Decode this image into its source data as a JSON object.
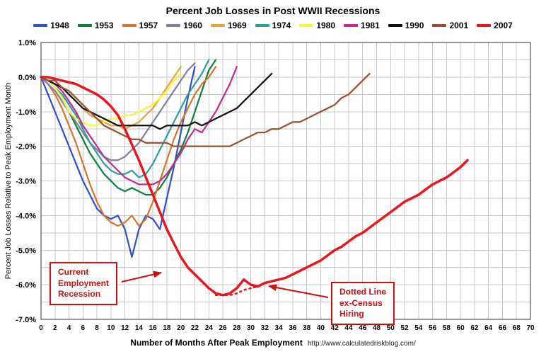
{
  "title": "Percent Job Losses in Post WWII Recessions",
  "axes": {
    "y_label": "Percent Job Losses Relative to Peak Employment Month",
    "x_label": "Number of Months After Peak Employment",
    "source_url": "http://www.calculatedriskblog.com/"
  },
  "annotations": [
    {
      "lines": [
        "Current",
        "Employment",
        "Recession"
      ]
    },
    {
      "lines": [
        "Dotted Line",
        "ex-Census",
        "Hiring"
      ]
    }
  ],
  "colors": {
    "annotation_red": "#cc1111",
    "grid": "#c6c6c6",
    "plot_border": "#555555"
  },
  "chart_data": {
    "type": "line",
    "title": "Percent Job Losses in Post WWII Recessions",
    "xlabel": "Number of Months After Peak Employment",
    "ylabel": "Percent Job Losses Relative to Peak Employment Month",
    "xlim": [
      0,
      70
    ],
    "ylim": [
      -7.0,
      1.0
    ],
    "x_tick_step": 2,
    "y_tick_step": 1.0,
    "y_grid_step": 0.5,
    "grid": true,
    "legend_position": "top",
    "x_unit": "months after peak employment",
    "y_unit": "percent",
    "series": [
      {
        "name": "1948",
        "color": "#3450c8",
        "values": [
          0,
          -0.5,
          -1.0,
          -1.5,
          -2.0,
          -2.5,
          -3.0,
          -3.4,
          -3.8,
          -4.0,
          -4.1,
          -4.0,
          -4.4,
          -5.2,
          -4.4,
          -4.0,
          -4.1,
          -4.4,
          -3.5,
          -2.6,
          -1.6,
          -0.6,
          0.3
        ]
      },
      {
        "name": "1953",
        "color": "#0e8040",
        "values": [
          0,
          -0.1,
          -0.3,
          -0.6,
          -1.0,
          -1.4,
          -1.8,
          -2.2,
          -2.5,
          -2.8,
          -3.0,
          -3.2,
          -3.3,
          -3.2,
          -3.3,
          -3.4,
          -3.4,
          -3.2,
          -2.9,
          -2.5,
          -2.1,
          -1.6,
          -1.0,
          -0.4,
          0.2,
          0.5
        ]
      },
      {
        "name": "1957",
        "color": "#d3772f",
        "values": [
          0,
          -0.2,
          -0.5,
          -0.9,
          -1.4,
          -1.9,
          -2.5,
          -3.1,
          -3.6,
          -4.0,
          -4.2,
          -4.3,
          -4.2,
          -4.0,
          -4.3,
          -4.1,
          -3.6,
          -3.0,
          -2.4,
          -1.8,
          -1.3,
          -0.9,
          -0.5,
          -0.2,
          0.0,
          0.3
        ]
      },
      {
        "name": "1960",
        "color": "#83809e",
        "values": [
          0,
          -0.2,
          -0.4,
          -0.7,
          -1.0,
          -1.3,
          -1.6,
          -1.9,
          -2.1,
          -2.3,
          -2.4,
          -2.4,
          -2.3,
          -2.1,
          -1.9,
          -1.6,
          -1.3,
          -1.0,
          -0.7,
          -0.4,
          -0.1,
          0.2,
          0.4
        ]
      },
      {
        "name": "1969",
        "color": "#e4a63c",
        "values": [
          0,
          -0.1,
          -0.2,
          -0.3,
          -0.5,
          -0.7,
          -0.9,
          -1.1,
          -1.2,
          -1.3,
          -1.4,
          -1.4,
          -1.5,
          -1.4,
          -1.3,
          -1.1,
          -0.9,
          -0.6,
          -0.3,
          0.0,
          0.3
        ]
      },
      {
        "name": "1974",
        "color": "#2e9e9e",
        "values": [
          0,
          -0.1,
          -0.3,
          -0.5,
          -0.8,
          -1.1,
          -1.5,
          -1.9,
          -2.2,
          -2.5,
          -2.7,
          -2.8,
          -2.8,
          -2.7,
          -2.9,
          -2.8,
          -2.5,
          -2.1,
          -1.7,
          -1.3,
          -0.9,
          -0.5,
          -0.2,
          0.1,
          0.5
        ]
      },
      {
        "name": "1980",
        "color": "#f6f63a",
        "values": [
          0,
          -0.1,
          -0.3,
          -0.6,
          -1.0,
          -1.2,
          -1.3,
          -1.4,
          -1.4,
          -1.3,
          -1.2,
          -1.2,
          -1.1,
          -1.1,
          -1.0,
          -0.9,
          -0.8,
          -0.6,
          -0.4,
          -0.1,
          0.1
        ]
      },
      {
        "name": "1981",
        "color": "#c12c92",
        "values": [
          0,
          -0.1,
          -0.2,
          -0.4,
          -0.7,
          -1.0,
          -1.4,
          -1.7,
          -2.0,
          -2.3,
          -2.5,
          -2.7,
          -2.9,
          -3.0,
          -3.1,
          -3.1,
          -3.1,
          -3.0,
          -2.8,
          -2.5,
          -2.2,
          -1.8,
          -1.5,
          -1.6,
          -1.3,
          -1.0,
          -0.6,
          -0.2,
          0.3
        ]
      },
      {
        "name": "1990",
        "color": "#111111",
        "values": [
          0,
          -0.1,
          -0.2,
          -0.3,
          -0.5,
          -0.7,
          -0.9,
          -1.0,
          -1.1,
          -1.2,
          -1.3,
          -1.4,
          -1.4,
          -1.4,
          -1.4,
          -1.4,
          -1.4,
          -1.5,
          -1.4,
          -1.4,
          -1.4,
          -1.4,
          -1.3,
          -1.4,
          -1.3,
          -1.2,
          -1.1,
          -1.0,
          -0.9,
          -0.7,
          -0.5,
          -0.3,
          -0.1,
          0.1
        ]
      },
      {
        "name": "2001",
        "color": "#9a4f2e",
        "values": [
          0,
          -0.1,
          -0.1,
          -0.3,
          -0.4,
          -0.6,
          -0.8,
          -1.0,
          -1.2,
          -1.4,
          -1.5,
          -1.6,
          -1.7,
          -1.8,
          -1.8,
          -1.9,
          -1.9,
          -1.9,
          -1.9,
          -2.0,
          -2.0,
          -2.0,
          -2.0,
          -2.0,
          -2.0,
          -2.0,
          -2.0,
          -2.0,
          -1.9,
          -1.8,
          -1.7,
          -1.6,
          -1.6,
          -1.5,
          -1.5,
          -1.4,
          -1.3,
          -1.3,
          -1.2,
          -1.1,
          -1.0,
          -0.9,
          -0.8,
          -0.6,
          -0.5,
          -0.3,
          -0.1,
          0.1
        ]
      },
      {
        "name": "2007",
        "color": "#e8171f",
        "width": 3.5,
        "values": [
          0,
          0.0,
          -0.05,
          -0.1,
          -0.15,
          -0.2,
          -0.3,
          -0.4,
          -0.5,
          -0.65,
          -0.85,
          -1.1,
          -1.5,
          -1.95,
          -2.4,
          -2.9,
          -3.4,
          -3.9,
          -4.4,
          -4.8,
          -5.2,
          -5.5,
          -5.7,
          -5.9,
          -6.1,
          -6.25,
          -6.3,
          -6.25,
          -6.1,
          -5.85,
          -6.0,
          -6.05,
          -5.95,
          -5.9,
          -5.85,
          -5.8,
          -5.7,
          -5.6,
          -5.5,
          -5.4,
          -5.3,
          -5.15,
          -5.0,
          -4.9,
          -4.75,
          -4.6,
          -4.5,
          -4.35,
          -4.2,
          -4.05,
          -3.9,
          -3.75,
          -3.6,
          -3.5,
          -3.4,
          -3.25,
          -3.1,
          -3.0,
          -2.9,
          -2.75,
          -2.6,
          -2.4
        ]
      },
      {
        "name": "2007 ex-Census",
        "color": "#e8171f",
        "width": 2.5,
        "dash": "2 5",
        "x0": 25,
        "legend": false,
        "values": [
          -6.3,
          -6.3,
          -6.3,
          -6.25,
          -6.15,
          -6.1,
          -6.05,
          -5.95
        ]
      }
    ]
  }
}
